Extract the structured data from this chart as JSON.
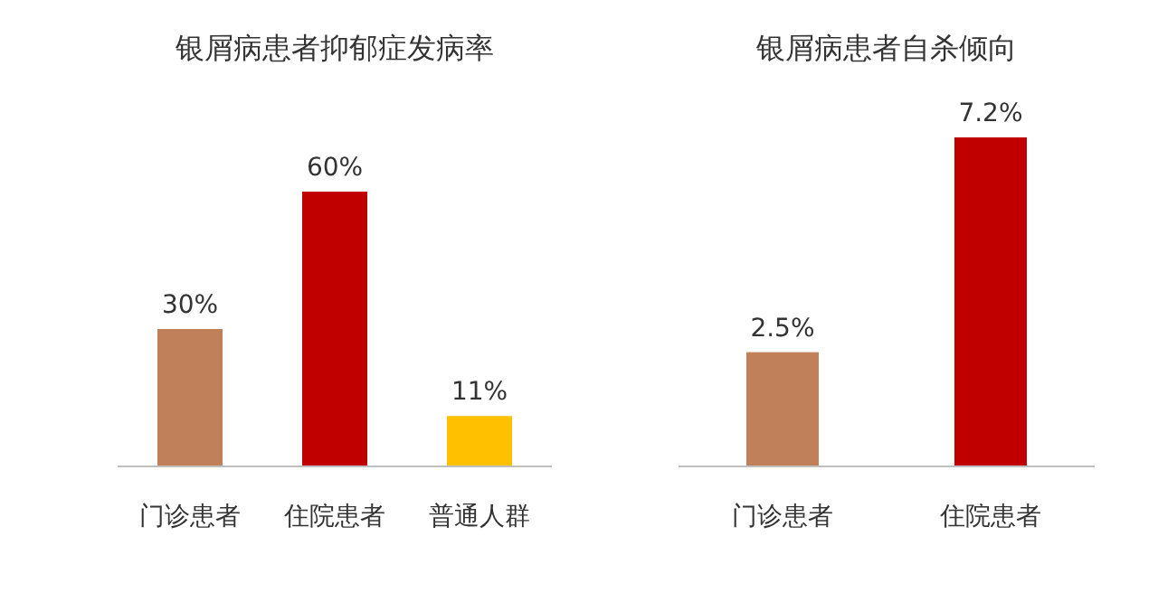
{
  "chart_data": [
    {
      "type": "bar",
      "title": "银屑病患者抑郁症发病率",
      "categories": [
        "门诊患者",
        "住院患者",
        "普通人群"
      ],
      "values": [
        30,
        60,
        11
      ],
      "colors": [
        "#c0805a",
        "#c00000",
        "#ffc000"
      ],
      "value_labels": [
        "30%",
        "60%",
        "11%"
      ]
    },
    {
      "type": "bar",
      "title": "银屑病患者自杀倾向",
      "categories": [
        "门诊患者",
        "住院患者"
      ],
      "values": [
        2.5,
        7.2
      ],
      "colors": [
        "#c0805a",
        "#c00000"
      ],
      "value_labels": [
        "2.5%",
        "7.2%"
      ]
    }
  ]
}
